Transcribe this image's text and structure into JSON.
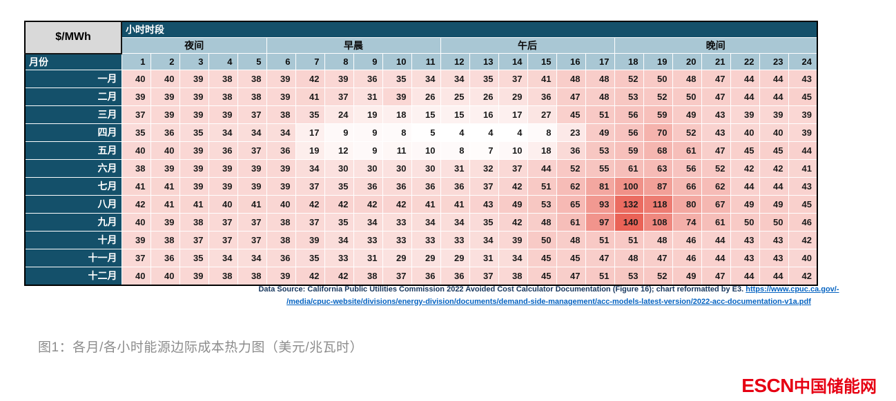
{
  "colors": {
    "header_dark_teal": "#14506A",
    "header_light_blue": "#A9C7D4",
    "corner_gray": "#D9D9D9",
    "heat_min_color": "#FFFFFF",
    "heat_max_color": "#EA6357",
    "source_text_navy": "#17375E",
    "link_blue": "#0563C1",
    "caption_gray": "#8C8C8C",
    "logo_red": "#E60012"
  },
  "chart_data": {
    "type": "heatmap",
    "title": "图1：各月/各小时能源边际成本热力图（美元/兆瓦时）",
    "unit_label": "$/MWh",
    "x_axis_label": "小时时段",
    "y_axis_label": "月份",
    "x": [
      1,
      2,
      3,
      4,
      5,
      6,
      7,
      8,
      9,
      10,
      11,
      12,
      13,
      14,
      15,
      16,
      17,
      18,
      19,
      20,
      21,
      22,
      23,
      24
    ],
    "col_groups": [
      {
        "label": "夜间",
        "span": 5
      },
      {
        "label": "早晨",
        "span": 6
      },
      {
        "label": "午后",
        "span": 6
      },
      {
        "label": "晚间",
        "span": 7
      }
    ],
    "categories": [
      "一月",
      "二月",
      "三月",
      "四月",
      "五月",
      "六月",
      "七月",
      "八月",
      "九月",
      "十月",
      "十一月",
      "十二月"
    ],
    "series": [
      {
        "name": "一月",
        "values": [
          40,
          40,
          39,
          38,
          38,
          39,
          42,
          39,
          36,
          35,
          34,
          34,
          35,
          37,
          41,
          48,
          48,
          52,
          50,
          48,
          47,
          44,
          44,
          43
        ]
      },
      {
        "name": "二月",
        "values": [
          39,
          39,
          39,
          38,
          38,
          39,
          41,
          37,
          31,
          39,
          26,
          25,
          26,
          29,
          36,
          47,
          48,
          53,
          52,
          50,
          47,
          44,
          44,
          45
        ]
      },
      {
        "name": "三月",
        "values": [
          37,
          39,
          39,
          39,
          37,
          38,
          35,
          24,
          19,
          18,
          15,
          15,
          16,
          17,
          27,
          45,
          51,
          56,
          59,
          49,
          43,
          39,
          39,
          39
        ]
      },
      {
        "name": "四月",
        "values": [
          35,
          36,
          35,
          34,
          34,
          34,
          17,
          9,
          9,
          8,
          5,
          4,
          4,
          4,
          8,
          23,
          49,
          56,
          70,
          52,
          43,
          40,
          40,
          39
        ]
      },
      {
        "name": "五月",
        "values": [
          40,
          40,
          39,
          36,
          37,
          36,
          19,
          12,
          9,
          11,
          10,
          8,
          7,
          10,
          18,
          36,
          53,
          59,
          68,
          61,
          47,
          45,
          45,
          44
        ]
      },
      {
        "name": "六月",
        "values": [
          38,
          39,
          39,
          39,
          39,
          39,
          34,
          30,
          30,
          30,
          30,
          31,
          32,
          37,
          44,
          52,
          55,
          61,
          63,
          56,
          52,
          42,
          42,
          41
        ]
      },
      {
        "name": "七月",
        "values": [
          41,
          41,
          39,
          39,
          39,
          39,
          37,
          35,
          36,
          36,
          36,
          36,
          37,
          42,
          51,
          62,
          81,
          100,
          87,
          66,
          62,
          44,
          44,
          43
        ]
      },
      {
        "name": "八月",
        "values": [
          42,
          41,
          41,
          40,
          41,
          40,
          42,
          42,
          42,
          42,
          41,
          41,
          43,
          49,
          53,
          65,
          93,
          132,
          118,
          80,
          67,
          49,
          49,
          45
        ]
      },
      {
        "name": "九月",
        "values": [
          40,
          39,
          38,
          37,
          37,
          38,
          37,
          35,
          34,
          33,
          34,
          34,
          35,
          42,
          48,
          61,
          97,
          140,
          108,
          74,
          61,
          50,
          50,
          46
        ]
      },
      {
        "name": "十月",
        "values": [
          39,
          38,
          37,
          37,
          37,
          38,
          39,
          34,
          33,
          33,
          33,
          33,
          34,
          39,
          50,
          48,
          51,
          51,
          48,
          46,
          44,
          43,
          43,
          42
        ]
      },
      {
        "name": "十一月",
        "values": [
          37,
          36,
          35,
          34,
          34,
          36,
          35,
          33,
          31,
          29,
          29,
          29,
          31,
          34,
          45,
          45,
          47,
          48,
          47,
          46,
          44,
          43,
          43,
          40
        ]
      },
      {
        "name": "十二月",
        "values": [
          40,
          40,
          39,
          38,
          38,
          39,
          42,
          42,
          38,
          37,
          36,
          36,
          37,
          38,
          45,
          47,
          51,
          53,
          52,
          49,
          47,
          44,
          44,
          42
        ]
      }
    ],
    "value_range": [
      4,
      140
    ],
    "colorscale": "white (min) to red (max)",
    "grid": true,
    "legend": false
  },
  "source": {
    "prefix": "Data Source: California Public Utilities Commission 2022 Avoided Cost Calculator Documentation (Figure 16); chart reformatted by E3. ",
    "link_line1": "https://www.cpuc.ca.gov/-",
    "link_line2": "/media/cpuc-website/divisions/energy-division/documents/demand-side-management/acc-models-latest-version/2022-acc-documentation-v1a.pdf"
  },
  "caption": "图1：各月/各小时能源边际成本热力图（美元/兆瓦时）",
  "logo": {
    "en": "ESCN",
    "zh": "中国储能网"
  }
}
